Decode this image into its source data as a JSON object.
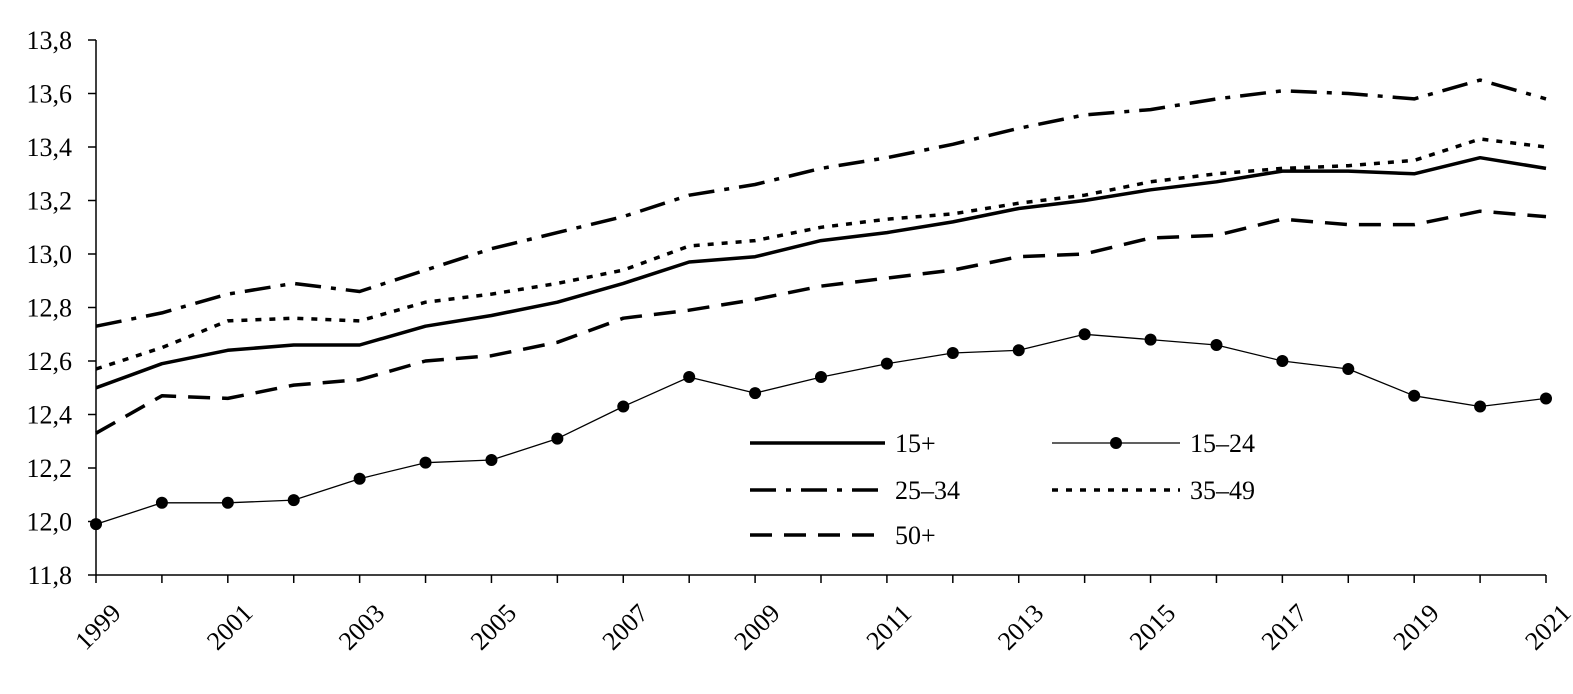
{
  "chart_data": {
    "type": "line",
    "title": "",
    "xlabel": "",
    "ylabel": "",
    "x": [
      1999,
      2000,
      2001,
      2002,
      2003,
      2004,
      2005,
      2006,
      2007,
      2008,
      2009,
      2010,
      2011,
      2012,
      2013,
      2014,
      2015,
      2016,
      2017,
      2018,
      2019,
      2020,
      2021
    ],
    "xticks": [
      "1999",
      "2001",
      "2003",
      "2005",
      "2007",
      "2009",
      "2011",
      "2013",
      "2015",
      "2017",
      "2019",
      "2021"
    ],
    "ylim": [
      11.8,
      13.8
    ],
    "yticks": [
      "11,8",
      "12,0",
      "12,2",
      "12,4",
      "12,6",
      "12,8",
      "13,0",
      "13,2",
      "13,4",
      "13,6",
      "13,8"
    ],
    "grid": false,
    "legend_position": "bottom-right",
    "series": [
      {
        "name": "15+",
        "style": "solid-thick",
        "values": [
          12.5,
          12.59,
          12.64,
          12.66,
          12.66,
          12.73,
          12.77,
          12.82,
          12.89,
          12.97,
          12.99,
          13.05,
          13.08,
          13.12,
          13.17,
          13.2,
          13.24,
          13.27,
          13.31,
          13.31,
          13.3,
          13.36,
          13.32
        ]
      },
      {
        "name": "15–24",
        "style": "thin-markers",
        "values": [
          11.99,
          12.07,
          12.07,
          12.08,
          12.16,
          12.22,
          12.23,
          12.31,
          12.43,
          12.54,
          12.48,
          12.54,
          12.59,
          12.63,
          12.64,
          12.7,
          12.68,
          12.66,
          12.6,
          12.57,
          12.47,
          12.43,
          12.46
        ]
      },
      {
        "name": "25–34",
        "style": "dash-dot",
        "values": [
          12.73,
          12.78,
          12.85,
          12.89,
          12.86,
          12.94,
          13.02,
          13.08,
          13.14,
          13.22,
          13.26,
          13.32,
          13.36,
          13.41,
          13.47,
          13.52,
          13.54,
          13.58,
          13.61,
          13.6,
          13.58,
          13.65,
          13.58
        ]
      },
      {
        "name": "35–49",
        "style": "dotted",
        "values": [
          12.57,
          12.65,
          12.75,
          12.76,
          12.75,
          12.82,
          12.85,
          12.89,
          12.94,
          13.03,
          13.05,
          13.1,
          13.13,
          13.15,
          13.19,
          13.22,
          13.27,
          13.3,
          13.32,
          13.33,
          13.35,
          13.43,
          13.4
        ]
      },
      {
        "name": "50+",
        "style": "dashed",
        "values": [
          12.33,
          12.47,
          12.46,
          12.51,
          12.53,
          12.6,
          12.62,
          12.67,
          12.76,
          12.79,
          12.83,
          12.88,
          12.91,
          12.94,
          12.99,
          13.0,
          13.06,
          13.07,
          13.13,
          13.11,
          13.11,
          13.16,
          13.14
        ]
      }
    ]
  }
}
